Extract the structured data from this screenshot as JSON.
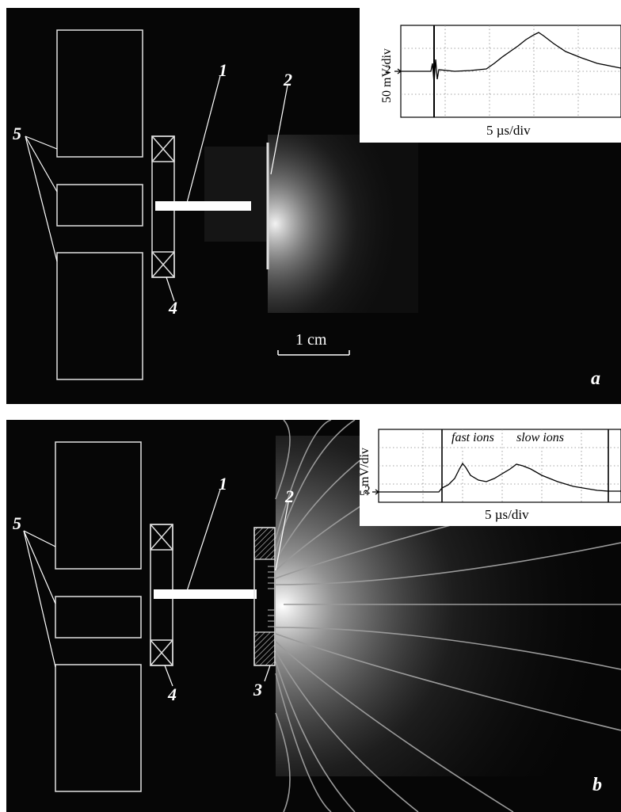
{
  "panel_a": {
    "letter": "a",
    "labels": {
      "n1": "1",
      "n2": "2",
      "n4": "4",
      "n5": "5"
    },
    "scale_bar": "1 cm",
    "inset": {
      "ylabel": "50 mV/div",
      "xlabel": "5 µs/div",
      "level_marker": "2"
    }
  },
  "panel_b": {
    "letter": "b",
    "labels": {
      "n1": "1",
      "n2": "2",
      "n3": "3",
      "n4": "4",
      "n5": "5"
    },
    "inset": {
      "ylabel": "5 mV/div",
      "xlabel": "5 µs/div",
      "level_marker": "2",
      "annotation_fast": "fast ions",
      "annotation_slow": "slow ions"
    }
  },
  "colors": {
    "background": "#000000",
    "lines": "#ffffff",
    "field_lines": "#9a9a9a",
    "inset_bg": "#ffffff"
  }
}
